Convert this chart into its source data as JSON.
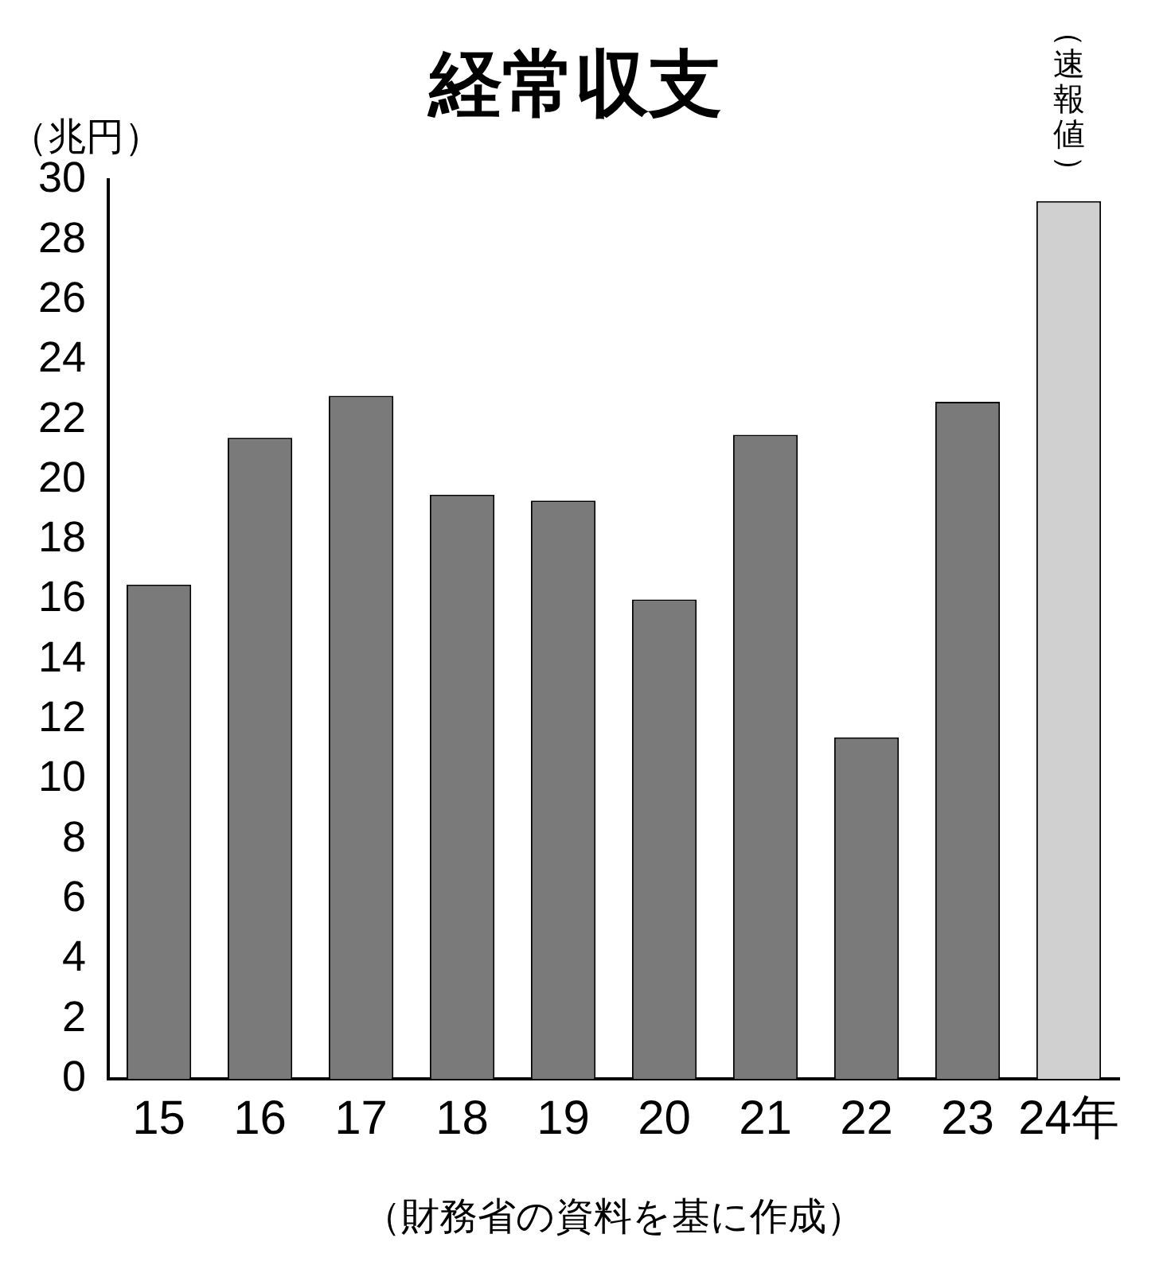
{
  "chart_data": {
    "type": "bar",
    "title": "経常収支",
    "ylabel": "（兆円）",
    "categories": [
      "15",
      "16",
      "17",
      "18",
      "19",
      "20",
      "21",
      "22",
      "23",
      "24年"
    ],
    "values": [
      16.5,
      21.4,
      22.8,
      19.5,
      19.3,
      16.0,
      21.5,
      11.4,
      22.6,
      29.3
    ],
    "colors": [
      "#7a7a7a",
      "#7a7a7a",
      "#7a7a7a",
      "#7a7a7a",
      "#7a7a7a",
      "#7a7a7a",
      "#7a7a7a",
      "#7a7a7a",
      "#7a7a7a",
      "#d0d0d0"
    ],
    "ylim": [
      0,
      30
    ],
    "yticks": [
      0,
      2,
      4,
      6,
      8,
      10,
      12,
      14,
      16,
      18,
      20,
      22,
      24,
      26,
      28,
      30
    ],
    "grid": false,
    "legend": false,
    "annotations": [
      {
        "text": "（速報値）",
        "x": "24年",
        "y": 29.3
      },
      "（財務省の資料を基に作成）"
    ]
  }
}
